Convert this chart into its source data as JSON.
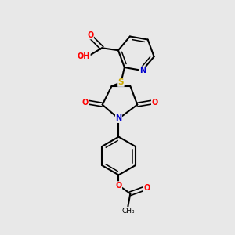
{
  "background_color": "#e8e8e8",
  "bond_color": "#000000",
  "atom_colors": {
    "N": "#0000cd",
    "O": "#ff0000",
    "S": "#ccaa00",
    "H": "#4a9090",
    "C": "#000000"
  },
  "figsize": [
    3.0,
    3.0
  ],
  "dpi": 100
}
